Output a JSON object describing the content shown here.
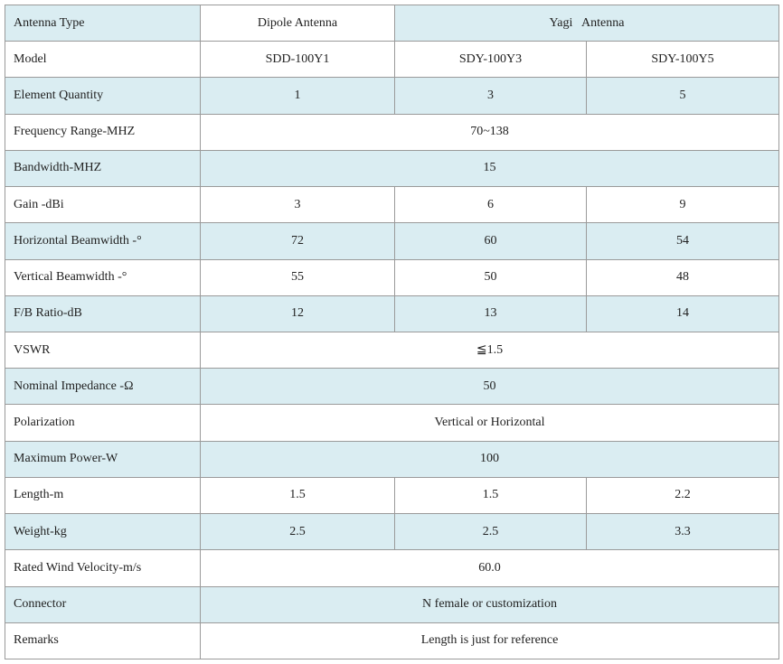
{
  "table": {
    "rows": [
      [
        "Antenna Type",
        "Dipole Antenna",
        "Yagi   Antenna"
      ],
      [
        "Model",
        "SDD-100Y1",
        "SDY-100Y3",
        "SDY-100Y5"
      ],
      [
        "Element Quantity",
        "1",
        "3",
        "5"
      ],
      [
        "Frequency Range-MHZ",
        "70~138"
      ],
      [
        "Bandwidth-MHZ",
        "15"
      ],
      [
        "Gain -dBi",
        "3",
        "6",
        "9"
      ],
      [
        "Horizontal Beamwidth -°",
        "72",
        "60",
        "54"
      ],
      [
        "Vertical Beamwidth -°",
        "55",
        "50",
        "48"
      ],
      [
        "F/B Ratio-dB",
        "12",
        "13",
        "14"
      ],
      [
        "VSWR",
        "≦1.5"
      ],
      [
        "Nominal Impedance -Ω",
        "50"
      ],
      [
        "Polarization",
        "Vertical or Horizontal"
      ],
      [
        "Maximum Power-W",
        "100"
      ],
      [
        "Length-m",
        "1.5",
        "1.5",
        "2.2"
      ],
      [
        "Weight-kg",
        "2.5",
        "2.5",
        "3.3"
      ],
      [
        "Rated Wind Velocity-m/s",
        "60.0"
      ],
      [
        "Connector",
        "N female or customization"
      ],
      [
        "Remarks",
        "Length is just for reference"
      ]
    ]
  }
}
